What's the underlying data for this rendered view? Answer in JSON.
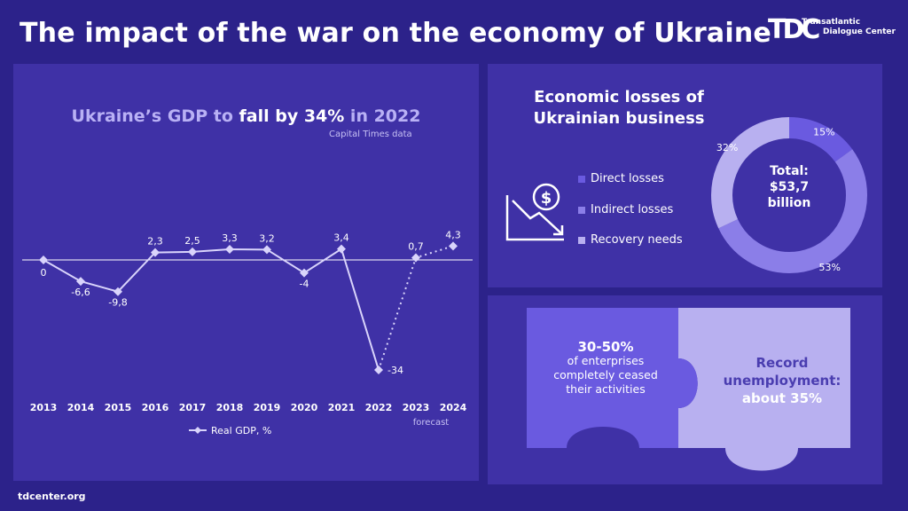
{
  "title": "The impact of the war on the economy of Ukraine",
  "logo": {
    "mark": "TDC",
    "line1": "Transatlantic",
    "line2": "Dialogue Center"
  },
  "footer": "tdcenter.org",
  "gdp": {
    "title_pre": "Ukraine’s GDP to ",
    "title_hl": "fall by 34%",
    "title_post": " in 2022",
    "source": "Capital Times data",
    "forecast_label": "forecast",
    "legend": "Real GDP, %"
  },
  "chart_data": [
    {
      "type": "line",
      "title": "Ukraine’s GDP to fall by 34% in 2022",
      "x": [
        "2013",
        "2014",
        "2015",
        "2016",
        "2017",
        "2018",
        "2019",
        "2020",
        "2021",
        "2022",
        "2023",
        "2024"
      ],
      "series": [
        {
          "name": "Real GDP, %",
          "values": [
            0,
            -6.6,
            -9.8,
            2.3,
            2.5,
            3.3,
            3.2,
            -4,
            3.4,
            -34,
            0.7,
            4.3
          ]
        }
      ],
      "data_labels": [
        "0",
        "-6,6",
        "-9,8",
        "2,3",
        "2,5",
        "3,3",
        "3,2",
        "-4",
        "3,4",
        "-34",
        "0,7",
        "4,3"
      ],
      "forecast_from": "2023",
      "ylim": [
        -34,
        4.3
      ],
      "grid": false
    },
    {
      "type": "pie",
      "title": "Economic losses of Ukrainian business",
      "categories": [
        "Direct losses",
        "Indirect losses",
        "Recovery needs"
      ],
      "values": [
        15,
        53,
        32
      ],
      "labels": [
        "15%",
        "53%",
        "32%"
      ],
      "center_text": [
        "Total:",
        "$53,7",
        "billion"
      ]
    }
  ],
  "losses": {
    "title_line1": "Economic losses of",
    "title_line2": "Ukrainian business",
    "legend": [
      "Direct losses",
      "Indirect losses",
      "Recovery needs"
    ],
    "colors": [
      "#6a5ae0",
      "#8b7ee8",
      "#b8b0f0"
    ],
    "center": {
      "l1": "Total:",
      "l2": "$53,7",
      "l3": "billion"
    }
  },
  "enterprises": {
    "pct": "30-50%",
    "line1": "of enterprises",
    "line2": "completely ceased",
    "line3": "their activities",
    "right1": "Record",
    "right2": "unemployment:",
    "right3": "about 35%"
  }
}
